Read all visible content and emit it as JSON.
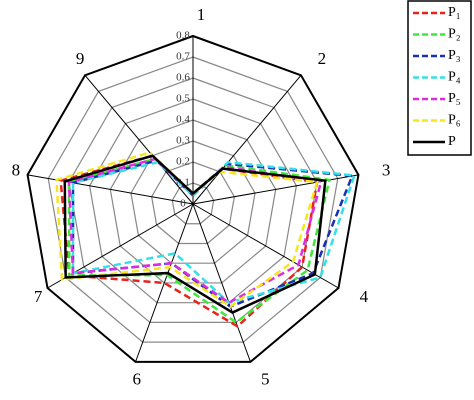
{
  "chart_data": {
    "type": "radar",
    "axes": [
      "1",
      "2",
      "3",
      "4",
      "5",
      "6",
      "7",
      "8",
      "9"
    ],
    "rlim": [
      0,
      0.8
    ],
    "rticks": [
      0,
      0.1,
      0.2,
      0.3,
      0.4,
      0.5,
      0.6,
      0.7,
      0.8
    ],
    "grid": true,
    "legend": "upper right",
    "series": [
      {
        "name": "P₁",
        "color": "#e8221d",
        "dashed": true,
        "values": [
          0.05,
          0.22,
          0.6,
          0.6,
          0.62,
          0.4,
          0.68,
          0.64,
          0.3
        ]
      },
      {
        "name": "P₂",
        "color": "#3ee83a",
        "dashed": true,
        "values": [
          0.05,
          0.24,
          0.66,
          0.63,
          0.6,
          0.36,
          0.68,
          0.6,
          0.28
        ]
      },
      {
        "name": "P₃",
        "color": "#1a2fb5",
        "dashed": true,
        "values": [
          0.04,
          0.25,
          0.77,
          0.66,
          0.52,
          0.3,
          0.66,
          0.58,
          0.27
        ]
      },
      {
        "name": "P₄",
        "color": "#33e0e8",
        "dashed": true,
        "values": [
          0.04,
          0.26,
          0.78,
          0.7,
          0.5,
          0.25,
          0.66,
          0.58,
          0.26
        ]
      },
      {
        "name": "P₅",
        "color": "#e02be0",
        "dashed": true,
        "values": [
          0.05,
          0.23,
          0.62,
          0.58,
          0.5,
          0.3,
          0.66,
          0.6,
          0.28
        ]
      },
      {
        "name": "P₆",
        "color": "#f5e61e",
        "dashed": true,
        "values": [
          0.05,
          0.2,
          0.6,
          0.55,
          0.52,
          0.32,
          0.72,
          0.66,
          0.32
        ]
      },
      {
        "name": "P",
        "color": "#000000",
        "dashed": false,
        "values": [
          0.05,
          0.22,
          0.64,
          0.67,
          0.55,
          0.35,
          0.7,
          0.62,
          0.3
        ]
      }
    ]
  }
}
